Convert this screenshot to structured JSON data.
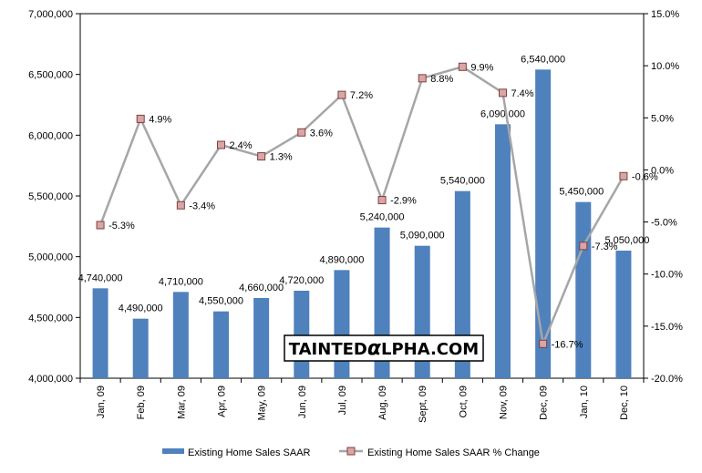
{
  "chart_data": {
    "type": "bar+line",
    "categories": [
      "Jan, 09",
      "Feb, 09",
      "Mar, 09",
      "Apr, 09",
      "May, 09",
      "Jun, 09",
      "Jul, 09",
      "Aug, 09",
      "Sept, 09",
      "Oct, 09",
      "Nov, 09",
      "Dec, 09",
      "Jan, 10",
      "Dec, 10"
    ],
    "series": [
      {
        "name": "Existing Home Sales SAAR",
        "kind": "bar",
        "axis": "left",
        "color": "#4F81BD",
        "values": [
          4740000,
          4490000,
          4710000,
          4550000,
          4660000,
          4720000,
          4890000,
          5240000,
          5090000,
          5540000,
          6090000,
          6540000,
          5450000,
          5050000
        ],
        "labels": [
          "4,740,000",
          "4,490,000",
          "4,710,000",
          "4,550,000",
          "4,660,000",
          "4,720,000",
          "4,890,000",
          "5,240,000",
          "5,090,000",
          "5,540,000",
          "6,090,000",
          "6,540,000",
          "5,450,000",
          "5,050,000"
        ]
      },
      {
        "name": "Existing Home Sales SAAR % Change",
        "kind": "line",
        "axis": "right",
        "color": "#A6A6A6",
        "marker_color": "#D9A6A6",
        "values": [
          -5.3,
          4.9,
          -3.4,
          2.4,
          1.3,
          3.6,
          7.2,
          -2.9,
          8.8,
          9.9,
          7.4,
          -16.7,
          -7.3,
          -0.6
        ],
        "labels": [
          "-5.3%",
          "4.9%",
          "-3.4%",
          "2.4%",
          "1.3%",
          "3.6%",
          "7.2%",
          "-2.9%",
          "8.8%",
          "9.9%",
          "7.4%",
          "-16.7%",
          "-7.3%",
          "-0.6%"
        ]
      }
    ],
    "left_axis": {
      "ylim": [
        4000000,
        7000000
      ],
      "ticks": [
        4000000,
        4500000,
        5000000,
        5500000,
        6000000,
        6500000,
        7000000
      ],
      "tick_labels": [
        "4,000,000",
        "4,500,000",
        "5,000,000",
        "5,500,000",
        "6,000,000",
        "6,500,000",
        "7,000,000"
      ]
    },
    "right_axis": {
      "ylim": [
        -20,
        15
      ],
      "ticks": [
        -20,
        -15,
        -10,
        -5,
        0,
        5,
        10,
        15
      ],
      "tick_labels": [
        "-20.0%",
        "-15.0%",
        "-10.0%",
        "-5.0%",
        "0.0%",
        "5.0%",
        "10.0%",
        "15.0%"
      ]
    },
    "legend": "bottom",
    "grid": false
  },
  "watermark": {
    "prefix": "TAINTED",
    "alpha": "α",
    "suffix": "LPHA.COM"
  }
}
